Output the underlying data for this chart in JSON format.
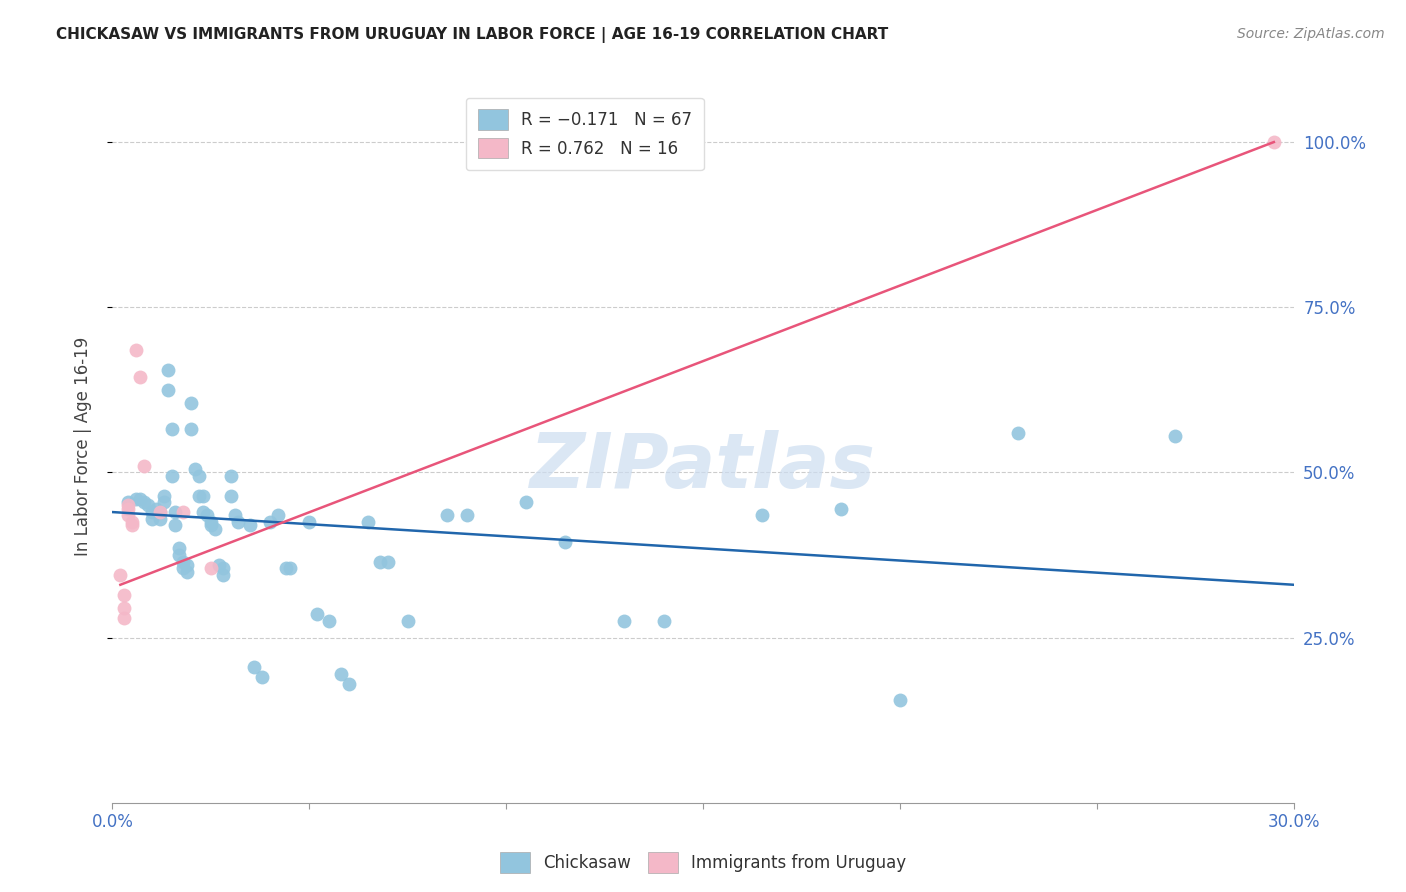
{
  "title": "CHICKASAW VS IMMIGRANTS FROM URUGUAY IN LABOR FORCE | AGE 16-19 CORRELATION CHART",
  "source": "Source: ZipAtlas.com",
  "ylabel": "In Labor Force | Age 16-19",
  "ytick_values": [
    0.25,
    0.5,
    0.75,
    1.0
  ],
  "xmin": 0.0,
  "xmax": 0.3,
  "ymin": 0.0,
  "ymax": 1.08,
  "blue_color": "#92c5de",
  "pink_color": "#f4b8c8",
  "blue_line_color": "#2166ac",
  "pink_line_color": "#e8557a",
  "watermark_color": "#ccddf0",
  "chickasaw_points": [
    [
      0.004,
      0.455
    ],
    [
      0.006,
      0.46
    ],
    [
      0.007,
      0.46
    ],
    [
      0.008,
      0.455
    ],
    [
      0.009,
      0.45
    ],
    [
      0.01,
      0.44
    ],
    [
      0.01,
      0.43
    ],
    [
      0.011,
      0.445
    ],
    [
      0.012,
      0.44
    ],
    [
      0.012,
      0.43
    ],
    [
      0.013,
      0.465
    ],
    [
      0.013,
      0.455
    ],
    [
      0.014,
      0.655
    ],
    [
      0.014,
      0.625
    ],
    [
      0.015,
      0.565
    ],
    [
      0.015,
      0.495
    ],
    [
      0.016,
      0.44
    ],
    [
      0.016,
      0.42
    ],
    [
      0.017,
      0.385
    ],
    [
      0.017,
      0.375
    ],
    [
      0.018,
      0.365
    ],
    [
      0.018,
      0.355
    ],
    [
      0.019,
      0.35
    ],
    [
      0.019,
      0.36
    ],
    [
      0.02,
      0.605
    ],
    [
      0.02,
      0.565
    ],
    [
      0.021,
      0.505
    ],
    [
      0.022,
      0.495
    ],
    [
      0.022,
      0.465
    ],
    [
      0.023,
      0.465
    ],
    [
      0.023,
      0.44
    ],
    [
      0.024,
      0.435
    ],
    [
      0.025,
      0.425
    ],
    [
      0.025,
      0.42
    ],
    [
      0.026,
      0.415
    ],
    [
      0.027,
      0.36
    ],
    [
      0.028,
      0.355
    ],
    [
      0.028,
      0.345
    ],
    [
      0.03,
      0.495
    ],
    [
      0.03,
      0.465
    ],
    [
      0.031,
      0.435
    ],
    [
      0.032,
      0.425
    ],
    [
      0.035,
      0.42
    ],
    [
      0.036,
      0.205
    ],
    [
      0.038,
      0.19
    ],
    [
      0.04,
      0.425
    ],
    [
      0.042,
      0.435
    ],
    [
      0.044,
      0.355
    ],
    [
      0.045,
      0.355
    ],
    [
      0.05,
      0.425
    ],
    [
      0.052,
      0.285
    ],
    [
      0.055,
      0.275
    ],
    [
      0.058,
      0.195
    ],
    [
      0.06,
      0.18
    ],
    [
      0.065,
      0.425
    ],
    [
      0.068,
      0.365
    ],
    [
      0.07,
      0.365
    ],
    [
      0.075,
      0.275
    ],
    [
      0.085,
      0.435
    ],
    [
      0.09,
      0.435
    ],
    [
      0.105,
      0.455
    ],
    [
      0.115,
      0.395
    ],
    [
      0.13,
      0.275
    ],
    [
      0.14,
      0.275
    ],
    [
      0.165,
      0.435
    ],
    [
      0.185,
      0.445
    ],
    [
      0.2,
      0.155
    ],
    [
      0.23,
      0.56
    ],
    [
      0.27,
      0.555
    ]
  ],
  "uruguay_points": [
    [
      0.002,
      0.345
    ],
    [
      0.003,
      0.315
    ],
    [
      0.003,
      0.295
    ],
    [
      0.003,
      0.28
    ],
    [
      0.004,
      0.45
    ],
    [
      0.004,
      0.445
    ],
    [
      0.004,
      0.435
    ],
    [
      0.005,
      0.425
    ],
    [
      0.005,
      0.42
    ],
    [
      0.006,
      0.685
    ],
    [
      0.007,
      0.645
    ],
    [
      0.008,
      0.51
    ],
    [
      0.012,
      0.44
    ],
    [
      0.018,
      0.44
    ],
    [
      0.025,
      0.355
    ],
    [
      0.295,
      1.0
    ]
  ],
  "blue_trend_x": [
    0.0,
    0.3
  ],
  "blue_trend_y": [
    0.44,
    0.33
  ],
  "pink_trend_x": [
    0.002,
    0.295
  ],
  "pink_trend_y": [
    0.33,
    1.0
  ]
}
